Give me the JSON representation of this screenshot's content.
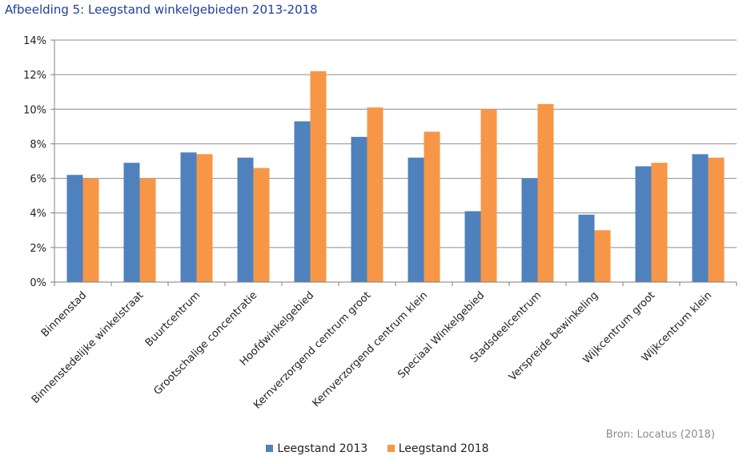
{
  "title": "Afbeelding 5: Leegstand winkelgebieden 2013-2018",
  "source": "Bron: Locatus (2018)",
  "colors": {
    "series1": "#4f81bd",
    "series2": "#f79646",
    "grid": "#8c8c8c",
    "axis": "#7f7f7f"
  },
  "chart_data": {
    "type": "bar",
    "categories": [
      "Binnenstad",
      "Binnenstedelijke winkelstraat",
      "Buurtcentrum",
      "Grootschalige concentratie",
      "Hoofdwinkelgebied",
      "Kernverzorgend centrum groot",
      "Kernverzorgend centrum klein",
      "Speciaal Winkelgebied",
      "Stadsdeelcentrum",
      "Verspreide bewinkeling",
      "Wijkcentrum groot",
      "Wijkcentrum klein"
    ],
    "series": [
      {
        "name": "Leegstand 2013",
        "values": [
          6.2,
          6.9,
          7.5,
          7.2,
          9.3,
          8.4,
          7.2,
          4.1,
          6.0,
          3.9,
          6.7,
          7.4
        ]
      },
      {
        "name": "Leegstand 2018",
        "values": [
          6.0,
          6.0,
          7.4,
          6.6,
          12.2,
          10.1,
          8.7,
          10.0,
          10.3,
          3.0,
          6.9,
          7.2
        ]
      }
    ],
    "ylim": [
      0,
      14
    ],
    "yticks": [
      0,
      2,
      4,
      6,
      8,
      10,
      12,
      14
    ],
    "ytick_labels": [
      "0%",
      "2%",
      "4%",
      "6%",
      "8%",
      "10%",
      "12%",
      "14%"
    ],
    "grid": true,
    "legend": "bottom"
  }
}
